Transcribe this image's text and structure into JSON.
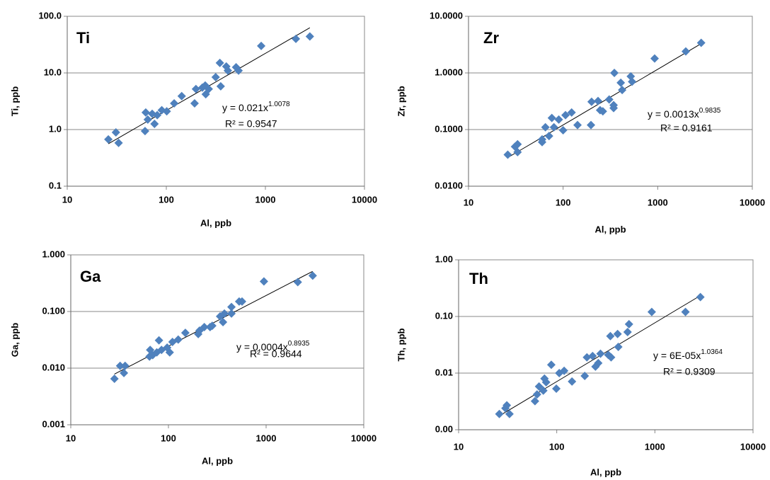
{
  "chart_data": [
    {
      "type": "scatter",
      "title": "Ti",
      "x_label": "Al, ppb",
      "y_label": "Ti, ppb",
      "color": "#4f81bd",
      "xlog": true,
      "ylog": true,
      "grid": true,
      "xlim": [
        10,
        10000
      ],
      "xticks": [
        10,
        100,
        1000,
        10000
      ],
      "ylim": [
        0.1,
        100
      ],
      "yticks": [
        {
          "value": 0.1,
          "label": "0.1"
        },
        {
          "value": 1,
          "label": "1.0"
        },
        {
          "value": 10,
          "label": "10.0"
        },
        {
          "value": 100,
          "label": "100.0"
        }
      ],
      "x": [
        26,
        31,
        33,
        61,
        62,
        65,
        72,
        76,
        81,
        90,
        101,
        120,
        143,
        193,
        199,
        231,
        247,
        250,
        268,
        315,
        354,
        347,
        418,
        403,
        506,
        536,
        907,
        2030,
        2810
      ],
      "values": [
        0.67,
        0.89,
        0.58,
        0.94,
        2.0,
        1.5,
        1.9,
        1.26,
        1.8,
        2.2,
        2.1,
        2.9,
        3.9,
        2.9,
        5.2,
        5.5,
        6.0,
        4.2,
        5.2,
        8.4,
        5.8,
        15,
        11,
        13,
        12.6,
        11,
        30,
        40,
        44
      ],
      "equation": {
        "text": "y = 0.021x",
        "exponent": "1.0078"
      },
      "r_squared": "R² = 0.9547",
      "trendline": {
        "coefficient": 0.021,
        "exponent": 1.0078
      }
    },
    {
      "type": "scatter",
      "title": "Zr",
      "x_label": "Al, ppb",
      "y_label": "Zr, ppb",
      "color": "#4f81bd",
      "xlog": true,
      "ylog": true,
      "grid": true,
      "xlim": [
        10,
        10000
      ],
      "xticks": [
        10,
        100,
        1000,
        10000
      ],
      "ylim": [
        0.01,
        10
      ],
      "yticks": [
        {
          "value": 0.01,
          "label": "0.0100"
        },
        {
          "value": 0.1,
          "label": "0.1000"
        },
        {
          "value": 1,
          "label": "1.0000"
        },
        {
          "value": 10,
          "label": "10.0000"
        }
      ],
      "x": [
        26,
        31,
        33,
        33,
        60,
        60,
        65,
        71,
        76,
        80,
        90,
        100,
        106,
        123,
        142,
        197,
        200,
        234,
        246,
        263,
        307,
        342,
        342,
        348,
        407,
        421,
        519,
        536,
        928,
        1980,
        2880
      ],
      "values": [
        0.036,
        0.05,
        0.04,
        0.055,
        0.06,
        0.067,
        0.11,
        0.077,
        0.16,
        0.11,
        0.15,
        0.097,
        0.18,
        0.2,
        0.12,
        0.12,
        0.31,
        0.32,
        0.22,
        0.21,
        0.34,
        0.27,
        0.24,
        1.0,
        0.67,
        0.5,
        0.87,
        0.7,
        1.8,
        2.4,
        3.4
      ],
      "equation": {
        "text": "y = 0.0013x",
        "exponent": "0.9835"
      },
      "r_squared": "R² = 0.9161",
      "trendline": {
        "coefficient": 0.0013,
        "exponent": 0.9835
      }
    },
    {
      "type": "scatter",
      "title": "Ga",
      "x_label": "Al, ppb",
      "y_label": "Ga, ppb",
      "color": "#4f81bd",
      "xlog": true,
      "ylog": true,
      "grid": true,
      "xlim": [
        10,
        10000
      ],
      "xticks": [
        10,
        100,
        1000,
        10000
      ],
      "ylim": [
        0.001,
        1
      ],
      "yticks": [
        {
          "value": 0.001,
          "label": "0.001"
        },
        {
          "value": 0.01,
          "label": "0.010"
        },
        {
          "value": 0.1,
          "label": "0.100"
        },
        {
          "value": 1,
          "label": "1.000"
        }
      ],
      "x": [
        28,
        32,
        35,
        36,
        64,
        65,
        69,
        76,
        80,
        85,
        97,
        103,
        110,
        126,
        149,
        202,
        208,
        233,
        267,
        281,
        338,
        362,
        374,
        442,
        442,
        530,
        567,
        950,
        2110,
        3000
      ],
      "values": [
        0.0065,
        0.011,
        0.0082,
        0.011,
        0.016,
        0.021,
        0.017,
        0.019,
        0.031,
        0.021,
        0.023,
        0.019,
        0.029,
        0.032,
        0.042,
        0.04,
        0.046,
        0.053,
        0.053,
        0.056,
        0.082,
        0.065,
        0.092,
        0.092,
        0.12,
        0.15,
        0.15,
        0.34,
        0.33,
        0.43
      ],
      "equation": {
        "text": "y = 0.0004x",
        "exponent": "0.8935"
      },
      "r_squared": "R² = 0.9644",
      "trendline": {
        "coefficient": 0.0004,
        "exponent": 0.8935
      }
    },
    {
      "type": "scatter",
      "title": "Th",
      "x_label": "Al, ppb",
      "y_label": "Th, ppb",
      "color": "#4f81bd",
      "xlog": true,
      "ylog": true,
      "grid": true,
      "xlim": [
        10,
        10000
      ],
      "xticks": [
        10,
        100,
        1000,
        10000
      ],
      "ylim": [
        0.001,
        1
      ],
      "yticks": [
        {
          "value": 0.001,
          "label": "0.00"
        },
        {
          "value": 0.01,
          "label": "0.01"
        },
        {
          "value": 0.1,
          "label": "0.10"
        },
        {
          "value": 1,
          "label": "1.00"
        }
      ],
      "x": [
        26,
        30,
        31,
        33,
        60,
        63,
        66,
        73,
        75,
        78,
        88,
        99,
        106,
        119,
        143,
        193,
        203,
        232,
        248,
        265,
        279,
        335,
        352,
        358,
        417,
        424,
        527,
        545,
        929,
        2050,
        2910
      ],
      "values": [
        0.0019,
        0.0024,
        0.0027,
        0.0019,
        0.0032,
        0.0042,
        0.0058,
        0.0049,
        0.008,
        0.0069,
        0.014,
        0.0053,
        0.01,
        0.011,
        0.0071,
        0.0089,
        0.019,
        0.02,
        0.013,
        0.015,
        0.022,
        0.021,
        0.045,
        0.019,
        0.049,
        0.029,
        0.053,
        0.073,
        0.12,
        0.12,
        0.22
      ],
      "equation": {
        "text": "y = 6E-05x",
        "exponent": "1.0364"
      },
      "r_squared": "R² = 0.9309",
      "trendline": {
        "coefficient": 6e-05,
        "exponent": 1.0364
      }
    }
  ]
}
